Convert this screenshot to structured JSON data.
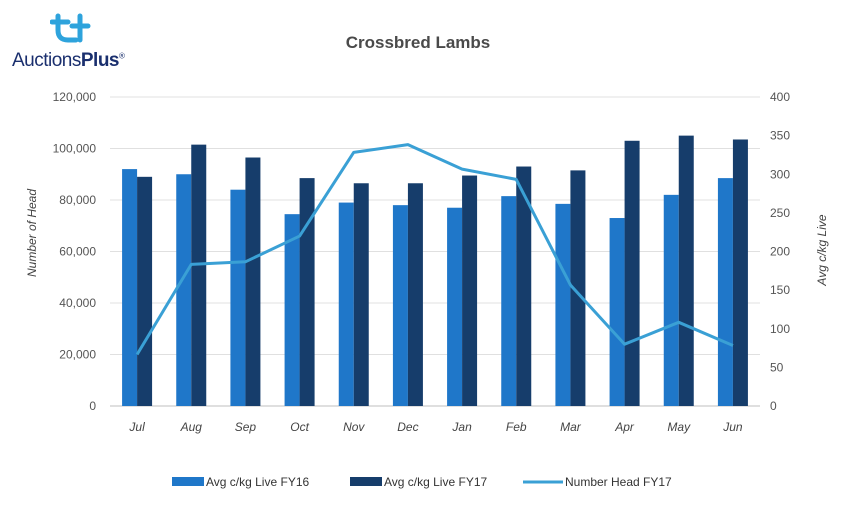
{
  "logo": {
    "brand_main": "Auctions",
    "brand_plus": "Plus",
    "tm": "®"
  },
  "chart_data": {
    "type": "bar",
    "title": "Crossbred Lambs",
    "categories": [
      "Jul",
      "Aug",
      "Sep",
      "Oct",
      "Nov",
      "Dec",
      "Jan",
      "Feb",
      "Mar",
      "Apr",
      "May",
      "Jun"
    ],
    "series": [
      {
        "name": "Avg c/kg Live FY16",
        "type": "bar",
        "axis": "right",
        "color": "#1f77c9",
        "values": [
          92000,
          90000,
          84000,
          74500,
          79000,
          78000,
          77000,
          81500,
          78500,
          73000,
          82000,
          88500
        ]
      },
      {
        "name": "Avg c/kg Live FY17",
        "type": "bar",
        "axis": "right",
        "color": "#163d6b",
        "values": [
          89000,
          101500,
          96500,
          88500,
          86500,
          86500,
          89500,
          93000,
          91500,
          103000,
          105000,
          103500
        ]
      },
      {
        "name": "Number Head FY17",
        "type": "line",
        "axis": "left",
        "color": "#3aa0d5",
        "values": [
          20000,
          55000,
          56000,
          66000,
          98500,
          101500,
          92000,
          88000,
          47000,
          24000,
          32500,
          23500
        ]
      }
    ],
    "left_axis": {
      "label": "Number of Head",
      "min": 0,
      "max": 120000,
      "step": 20000,
      "ticks": [
        "0",
        "20,000",
        "40,000",
        "60,000",
        "80,000",
        "100,000",
        "120,000"
      ]
    },
    "right_axis": {
      "label": "Avg c/kg Live",
      "min": 0,
      "max": 400,
      "step": 50,
      "ticks": [
        "0",
        "50",
        "100",
        "150",
        "200",
        "250",
        "300",
        "350",
        "400"
      ]
    },
    "grid": true,
    "legend_position": "bottom"
  }
}
